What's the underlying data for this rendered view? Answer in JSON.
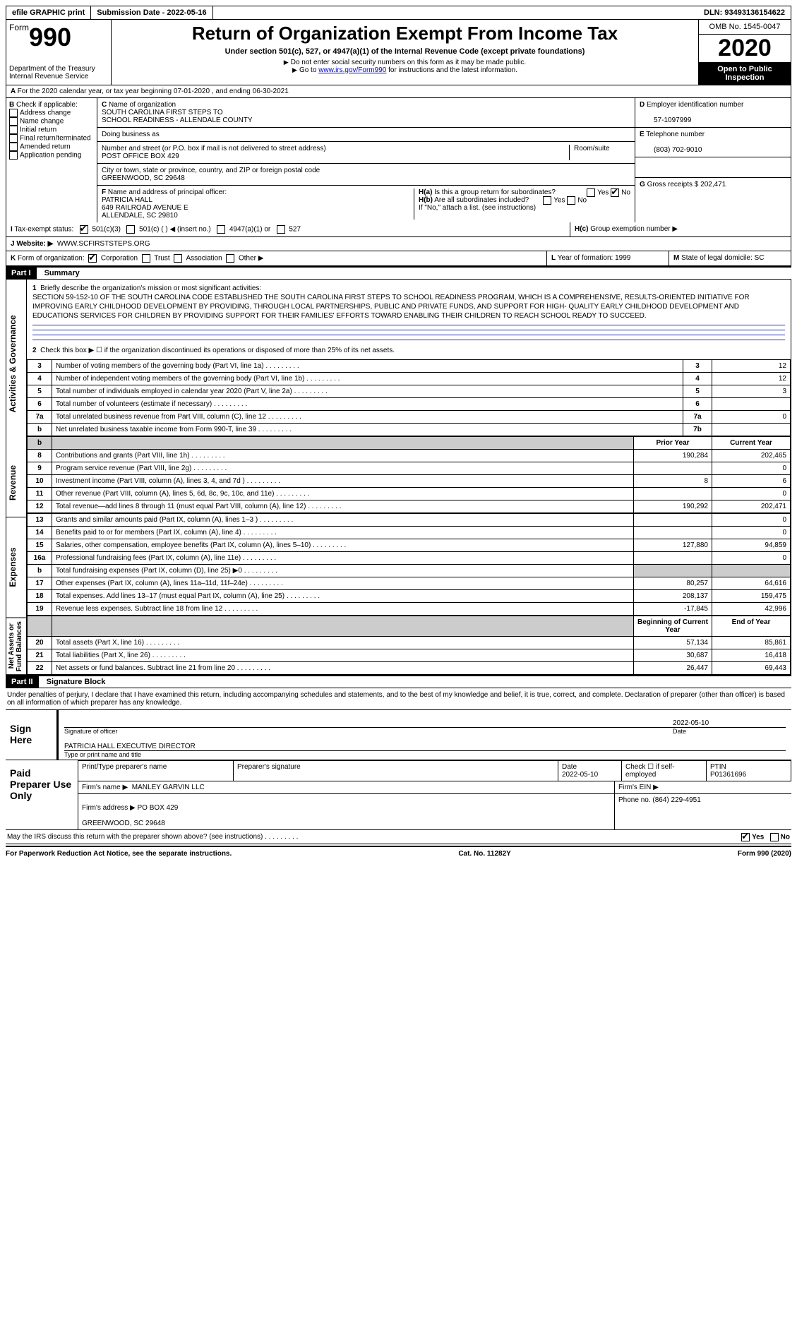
{
  "topbar": {
    "efile": "efile GRAPHIC print",
    "subdate_label": "Submission Date - ",
    "subdate": "2022-05-16",
    "dln_label": "DLN: ",
    "dln": "93493136154622"
  },
  "header": {
    "form_word": "Form",
    "form_num": "990",
    "dept": "Department of the Treasury\nInternal Revenue Service",
    "title": "Return of Organization Exempt From Income Tax",
    "sub1": "Under section 501(c), 527, or 4947(a)(1) of the Internal Revenue Code (except private foundations)",
    "sub2": "Do not enter social security numbers on this form as it may be made public.",
    "sub3_pre": "Go to ",
    "sub3_link": "www.irs.gov/Form990",
    "sub3_post": " for instructions and the latest information.",
    "omb": "OMB No. 1545-0047",
    "year": "2020",
    "open": "Open to Public Inspection"
  },
  "rowA": "For the 2020 calendar year, or tax year beginning 07-01-2020    , and ending 06-30-2021",
  "B": {
    "label": "Check if applicable:",
    "items": [
      "Address change",
      "Name change",
      "Initial return",
      "Final return/terminated",
      "Amended return",
      "Application pending"
    ]
  },
  "C": {
    "name_label": "Name of organization",
    "name": "SOUTH CAROLINA FIRST STEPS TO\nSCHOOL READINESS - ALLENDALE COUNTY",
    "dba_label": "Doing business as",
    "street_label": "Number and street (or P.O. box if mail is not delivered to street address)",
    "street": "POST OFFICE BOX 429",
    "room_label": "Room/suite",
    "city_label": "City or town, state or province, country, and ZIP or foreign postal code",
    "city": "GREENWOOD, SC  29648",
    "officer_label": "Name and address of principal officer:",
    "officer": "PATRICIA HALL\n649 RAILROAD AVENUE E\nALLENDALE, SC  29810"
  },
  "D": {
    "label": "Employer identification number",
    "value": "57-1097999"
  },
  "E": {
    "label": "Telephone number",
    "value": "(803) 702-9010"
  },
  "G": {
    "label": "Gross receipts $",
    "value": "202,471"
  },
  "H": {
    "a": "Is this a group return for subordinates?",
    "a_no": "No",
    "b": "Are all subordinates included?",
    "b_note": "If \"No,\" attach a list. (see instructions)",
    "c": "Group exemption number ▶"
  },
  "I": {
    "label": "Tax-exempt status:",
    "opts": [
      "501(c)(3)",
      "501(c) (  ) ◀ (insert no.)",
      "4947(a)(1) or",
      "527"
    ]
  },
  "J": {
    "label": "Website: ▶",
    "value": "WWW.SCFIRSTSTEPS.ORG"
  },
  "K": {
    "label": "Form of organization:",
    "opts": [
      "Corporation",
      "Trust",
      "Association",
      "Other ▶"
    ]
  },
  "L": {
    "label": "Year of formation:",
    "value": "1999"
  },
  "M": {
    "label": "State of legal domicile:",
    "value": "SC"
  },
  "part1": {
    "header": "Part I",
    "title": "Summary",
    "mission_label": "Briefly describe the organization's mission or most significant activities:",
    "mission": "SECTION 59-152-10 OF THE SOUTH CAROLINA CODE ESTABLISHED THE SOUTH CAROLINA FIRST STEPS TO SCHOOL READINESS PROGRAM, WHICH IS A COMPREHENSIVE, RESULTS-ORIENTED INITIATIVE FOR IMPROVING EARLY CHILDHOOD DEVELOPMENT BY PROVIDING, THROUGH LOCAL PARTNERSHIPS, PUBLIC AND PRIVATE FUNDS, AND SUPPORT FOR HIGH- QUALITY EARLY CHILDHOOD DEVELOPMENT AND EDUCATIONS SERVICES FOR CHILDREN BY PROVIDING SUPPORT FOR THEIR FAMILIES' EFFORTS TOWARD ENABLING THEIR CHILDREN TO REACH SCHOOL READY TO SUCCEED.",
    "line2": "Check this box ▶ ☐  if the organization discontinued its operations or disposed of more than 25% of its net assets.",
    "ag_rows": [
      {
        "n": "3",
        "lbl": "Number of voting members of the governing body (Part VI, line 1a)",
        "box": "3",
        "v": "12"
      },
      {
        "n": "4",
        "lbl": "Number of independent voting members of the governing body (Part VI, line 1b)",
        "box": "4",
        "v": "12"
      },
      {
        "n": "5",
        "lbl": "Total number of individuals employed in calendar year 2020 (Part V, line 2a)",
        "box": "5",
        "v": "3"
      },
      {
        "n": "6",
        "lbl": "Total number of volunteers (estimate if necessary)",
        "box": "6",
        "v": ""
      },
      {
        "n": "7a",
        "lbl": "Total unrelated business revenue from Part VIII, column (C), line 12",
        "box": "7a",
        "v": "0"
      },
      {
        "n": "b",
        "lbl": "Net unrelated business taxable income from Form 990-T, line 39",
        "box": "7b",
        "v": ""
      }
    ],
    "col_prior": "Prior Year",
    "col_current": "Current Year",
    "rev_rows": [
      {
        "n": "8",
        "lbl": "Contributions and grants (Part VIII, line 1h)",
        "p": "190,284",
        "c": "202,465"
      },
      {
        "n": "9",
        "lbl": "Program service revenue (Part VIII, line 2g)",
        "p": "",
        "c": "0"
      },
      {
        "n": "10",
        "lbl": "Investment income (Part VIII, column (A), lines 3, 4, and 7d )",
        "p": "8",
        "c": "6"
      },
      {
        "n": "11",
        "lbl": "Other revenue (Part VIII, column (A), lines 5, 6d, 8c, 9c, 10c, and 11e)",
        "p": "",
        "c": "0"
      },
      {
        "n": "12",
        "lbl": "Total revenue—add lines 8 through 11 (must equal Part VIII, column (A), line 12)",
        "p": "190,292",
        "c": "202,471"
      }
    ],
    "exp_rows": [
      {
        "n": "13",
        "lbl": "Grants and similar amounts paid (Part IX, column (A), lines 1–3 )",
        "p": "",
        "c": "0"
      },
      {
        "n": "14",
        "lbl": "Benefits paid to or for members (Part IX, column (A), line 4)",
        "p": "",
        "c": "0"
      },
      {
        "n": "15",
        "lbl": "Salaries, other compensation, employee benefits (Part IX, column (A), lines 5–10)",
        "p": "127,880",
        "c": "94,859"
      },
      {
        "n": "16a",
        "lbl": "Professional fundraising fees (Part IX, column (A), line 11e)",
        "p": "",
        "c": "0"
      },
      {
        "n": "b",
        "lbl": "Total fundraising expenses (Part IX, column (D), line 25) ▶0",
        "p": "SHADE",
        "c": "SHADE"
      },
      {
        "n": "17",
        "lbl": "Other expenses (Part IX, column (A), lines 11a–11d, 11f–24e)",
        "p": "80,257",
        "c": "64,616"
      },
      {
        "n": "18",
        "lbl": "Total expenses. Add lines 13–17 (must equal Part IX, column (A), line 25)",
        "p": "208,137",
        "c": "159,475"
      },
      {
        "n": "19",
        "lbl": "Revenue less expenses. Subtract line 18 from line 12",
        "p": "-17,845",
        "c": "42,996"
      }
    ],
    "col_begin": "Beginning of Current Year",
    "col_end": "End of Year",
    "net_rows": [
      {
        "n": "20",
        "lbl": "Total assets (Part X, line 16)",
        "p": "57,134",
        "c": "85,861"
      },
      {
        "n": "21",
        "lbl": "Total liabilities (Part X, line 26)",
        "p": "30,687",
        "c": "16,418"
      },
      {
        "n": "22",
        "lbl": "Net assets or fund balances. Subtract line 21 from line 20",
        "p": "26,447",
        "c": "69,443"
      }
    ],
    "vlabels": [
      "Activities & Governance",
      "Revenue",
      "Expenses",
      "Net Assets or\nFund Balances"
    ]
  },
  "part2": {
    "header": "Part II",
    "title": "Signature Block",
    "decl": "Under penalties of perjury, I declare that I have examined this return, including accompanying schedules and statements, and to the best of my knowledge and belief, it is true, correct, and complete. Declaration of preparer (other than officer) is based on all information of which preparer has any knowledge.",
    "sign_here": "Sign Here",
    "sig_officer": "Signature of officer",
    "sig_date": "2022-05-10",
    "date_lbl": "Date",
    "officer_name": "PATRICIA HALL  EXECUTIVE DIRECTOR",
    "type_name": "Type or print name and title",
    "paid": "Paid Preparer Use Only",
    "prep_name_lbl": "Print/Type preparer's name",
    "prep_sig_lbl": "Preparer's signature",
    "prep_date_lbl": "Date",
    "prep_date": "2022-05-10",
    "check_lbl": "Check ☐ if self-employed",
    "ptin_lbl": "PTIN",
    "ptin": "P01361696",
    "firm_name_lbl": "Firm's name    ▶",
    "firm_name": "MANLEY GARVIN LLC",
    "firm_ein_lbl": "Firm's EIN ▶",
    "firm_addr_lbl": "Firm's address ▶",
    "firm_addr": "PO BOX 429\n\nGREENWOOD, SC  29648",
    "phone_lbl": "Phone no.",
    "phone": "(864) 229-4951",
    "discuss": "May the IRS discuss this return with the preparer shown above? (see instructions)",
    "discuss_yes": "Yes",
    "discuss_no": "No"
  },
  "footer": {
    "left": "For Paperwork Reduction Act Notice, see the separate instructions.",
    "mid": "Cat. No. 11282Y",
    "right": "Form 990 (2020)"
  }
}
